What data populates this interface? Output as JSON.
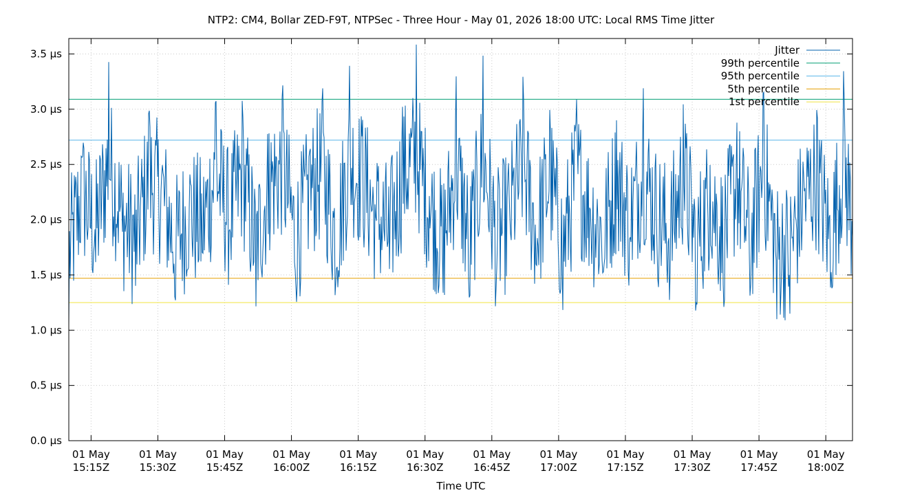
{
  "chart_data": {
    "type": "line",
    "title": "NTP2: CM4, Bollar ZED-F9T, NTPSec - Three Hour - May 01, 2026 18:00 UTC: Local RMS Time Jitter",
    "xlabel": "Time UTC",
    "ylabel": "",
    "x_range": [
      "01 May 15:10Z",
      "01 May 18:06Z"
    ],
    "x_ticks": [
      {
        "date": "01 May",
        "time": "15:15Z"
      },
      {
        "date": "01 May",
        "time": "15:30Z"
      },
      {
        "date": "01 May",
        "time": "15:45Z"
      },
      {
        "date": "01 May",
        "time": "16:00Z"
      },
      {
        "date": "01 May",
        "time": "16:15Z"
      },
      {
        "date": "01 May",
        "time": "16:30Z"
      },
      {
        "date": "01 May",
        "time": "16:45Z"
      },
      {
        "date": "01 May",
        "time": "17:00Z"
      },
      {
        "date": "01 May",
        "time": "17:15Z"
      },
      {
        "date": "01 May",
        "time": "17:30Z"
      },
      {
        "date": "01 May",
        "time": "17:45Z"
      },
      {
        "date": "01 May",
        "time": "18:00Z"
      }
    ],
    "y_unit": "µs",
    "ylim": [
      0,
      3.64
    ],
    "y_ticks": [
      "0.0 µs",
      "0.5 µs",
      "1.0 µs",
      "1.5 µs",
      "2.0 µs",
      "2.5 µs",
      "3.0 µs",
      "3.5 µs"
    ],
    "y_tick_values": [
      0,
      0.5,
      1.0,
      1.5,
      2.0,
      2.5,
      3.0,
      3.5
    ],
    "grid": true,
    "legend_position": "top-right",
    "series": [
      {
        "name": "Jitter",
        "color": "#0060ad",
        "x": [
          "15:10Z",
          "15:13Z",
          "15:16Z",
          "15:19Z",
          "15:22Z",
          "15:25Z",
          "15:28Z",
          "15:31Z",
          "15:34Z",
          "15:37Z",
          "15:40Z",
          "15:43Z",
          "15:46Z",
          "15:49Z",
          "15:52Z",
          "15:55Z",
          "15:58Z",
          "16:01Z",
          "16:04Z",
          "16:07Z",
          "16:10Z",
          "16:13Z",
          "16:16Z",
          "16:19Z",
          "16:22Z",
          "16:25Z",
          "16:28Z",
          "16:31Z",
          "16:34Z",
          "16:37Z",
          "16:40Z",
          "16:43Z",
          "16:46Z",
          "16:49Z",
          "16:52Z",
          "16:55Z",
          "16:58Z",
          "17:01Z",
          "17:04Z",
          "17:07Z",
          "17:10Z",
          "17:13Z",
          "17:16Z",
          "17:19Z",
          "17:22Z",
          "17:25Z",
          "17:28Z",
          "17:31Z",
          "17:34Z",
          "17:37Z",
          "17:40Z",
          "17:43Z",
          "17:46Z",
          "17:49Z",
          "17:52Z",
          "17:55Z",
          "17:58Z",
          "18:01Z",
          "18:04Z",
          "18:06Z"
        ],
        "values": [
          0.95,
          2.6,
          1.6,
          3.45,
          1.9,
          1.4,
          3.0,
          2.5,
          1.25,
          2.1,
          1.7,
          3.1,
          1.9,
          3.1,
          1.2,
          2.8,
          3.25,
          1.4,
          2.6,
          3.2,
          1.4,
          3.4,
          2.9,
          2.0,
          1.55,
          3.05,
          3.6,
          2.2,
          1.3,
          3.3,
          1.25,
          3.5,
          1.35,
          2.0,
          3.3,
          1.55,
          3.0,
          1.15,
          3.1,
          2.1,
          1.5,
          2.9,
          1.8,
          3.2,
          2.0,
          1.5,
          3.05,
          1.2,
          2.5,
          1.4,
          2.9,
          1.3,
          3.2,
          1.1,
          1.15,
          2.4,
          3.0,
          1.35,
          3.35,
          1.85
        ]
      },
      {
        "name": "99th percentile",
        "color": "#009e73",
        "values": [
          3.09
        ]
      },
      {
        "name": "95th percentile",
        "color": "#56b4e9",
        "values": [
          2.72
        ]
      },
      {
        "name": "5th percentile",
        "color": "#e69f00",
        "values": [
          1.47
        ]
      },
      {
        "name": "1st percentile",
        "color": "#f0e442",
        "values": [
          1.25
        ]
      }
    ]
  }
}
